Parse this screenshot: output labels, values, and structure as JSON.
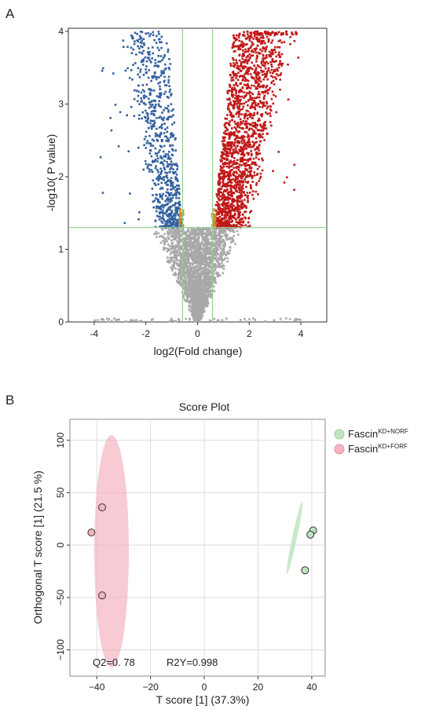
{
  "panels": {
    "a_label": "A",
    "b_label": "B"
  },
  "colors": {
    "up": "#c01818",
    "down": "#33609e",
    "nonsig": "#a8a8a8",
    "threshold": "#93d093",
    "group1_fill": "#bfe4bf",
    "group2_fill": "#f4b4c2",
    "point_stroke": "#333333"
  },
  "chart_data": [
    {
      "type": "scatter",
      "name_hint": "volcano",
      "xlabel": "log2(Fold change)",
      "ylabel": "-log10( P value)",
      "xlim": [
        -5,
        5
      ],
      "ylim": [
        0,
        4
      ],
      "xticks": [
        -4,
        -2,
        0,
        2,
        4
      ],
      "yticks": [
        0,
        1,
        2,
        3,
        4
      ],
      "thresholds": {
        "x": [
          -0.58,
          0.58
        ],
        "y": 1.3
      },
      "grid": false,
      "series": [
        {
          "color_key": "down",
          "points_approx": 900,
          "x_range": [
            -4.1,
            -0.58
          ],
          "y_range": [
            1.3,
            4.0
          ]
        },
        {
          "color_key": "up",
          "points_approx": 1800,
          "x_range": [
            0.58,
            4.0
          ],
          "y_range": [
            1.3,
            4.0
          ]
        },
        {
          "color_key": "nonsig",
          "points_approx": 3500,
          "x_range": [
            -4.0,
            4.0
          ],
          "y_range": [
            0,
            1.3
          ]
        }
      ]
    },
    {
      "type": "scatter",
      "title": "Score Plot",
      "xlabel": "T score [1] (37.3%)",
      "ylabel": "Orthogonal T score [1] (21.5 %)",
      "xlim": [
        -50,
        45
      ],
      "ylim": [
        -125,
        120
      ],
      "xticks": [
        -40,
        -20,
        0,
        20,
        40
      ],
      "yticks": [
        -100,
        -50,
        0,
        50,
        100
      ],
      "grid": true,
      "legend_position": "right",
      "annotations": [
        "Q2=0. 78",
        "R2Y=0.998"
      ],
      "series": [
        {
          "legend_base": "Fascin",
          "legend_sup": "KD+NORF",
          "color_key": "group1_fill",
          "points": [
            [
              40.5,
              14
            ],
            [
              39.5,
              10
            ],
            [
              37.5,
              -24
            ]
          ]
        },
        {
          "legend_base": "Fascin",
          "legend_sup": "KD+FORF",
          "color_key": "group2_fill",
          "points": [
            [
              -38,
              36
            ],
            [
              -42,
              12
            ],
            [
              -38,
              -48
            ]
          ]
        }
      ]
    }
  ]
}
